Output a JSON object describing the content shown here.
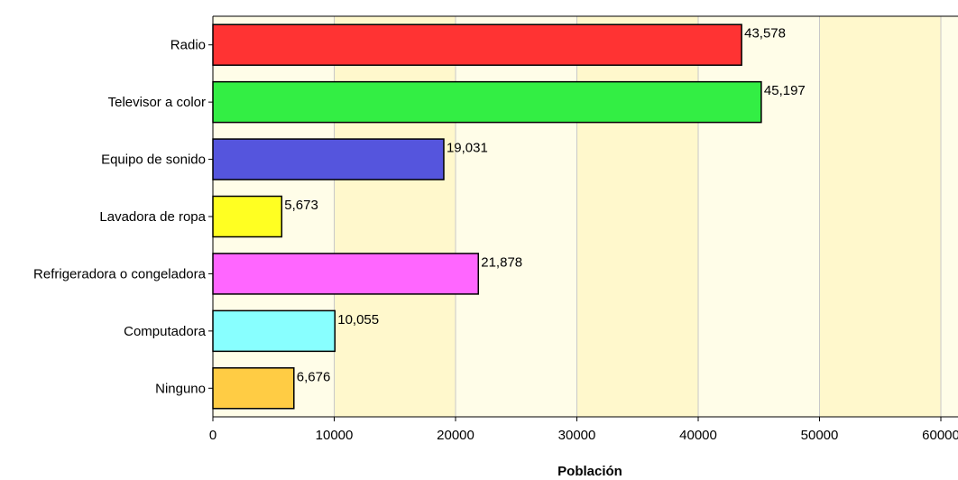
{
  "chart_data": {
    "type": "bar",
    "orientation": "horizontal",
    "categories": [
      "Radio",
      "Televisor a color",
      "Equipo de sonido",
      "Lavadora de ropa",
      "Refrigeradora o congeladora",
      "Computadora",
      "Ninguno"
    ],
    "values": [
      43578,
      45197,
      19031,
      5673,
      21878,
      10055,
      6676
    ],
    "data_labels": [
      "43,578",
      "45,197",
      "19,031",
      "5,673",
      "21,878",
      "10,055",
      "6,676"
    ],
    "colors": [
      "#ff3333",
      "#33ee44",
      "#5555dd",
      "#ffff22",
      "#ff66ff",
      "#88ffff",
      "#ffcc44"
    ],
    "xlabel": "Población",
    "ylabel": "",
    "xlim": [
      0,
      60000
    ],
    "xticks": [
      0,
      10000,
      20000,
      30000,
      40000,
      50000,
      60000
    ],
    "xtick_labels": [
      "0",
      "10000",
      "20000",
      "30000",
      "40000",
      "50000",
      "60000"
    ],
    "grid": true,
    "band_colors": [
      "#fffde8",
      "#fff8cc"
    ]
  }
}
